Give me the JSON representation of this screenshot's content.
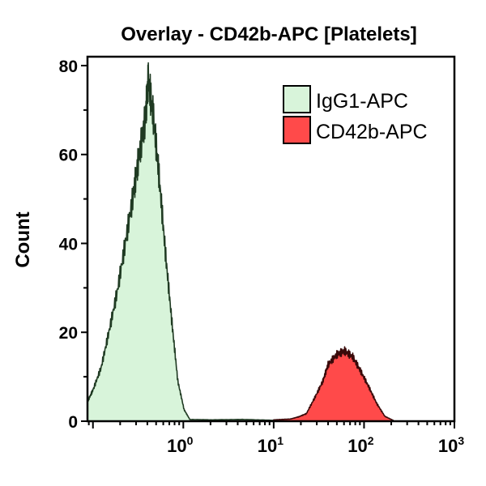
{
  "chart_data": {
    "type": "area",
    "title": "Overlay - CD42b-APC [Platelets]",
    "xlabel": "",
    "ylabel": "Count",
    "x_scale": "log",
    "xlim": [
      0.087,
      1000
    ],
    "ylim": [
      0,
      82
    ],
    "x_ticks": [
      {
        "value": 1,
        "base": "10",
        "exp": "0"
      },
      {
        "value": 10,
        "base": "10",
        "exp": "1"
      },
      {
        "value": 100,
        "base": "10",
        "exp": "2"
      },
      {
        "value": 1000,
        "base": "10",
        "exp": "3"
      }
    ],
    "y_ticks": [
      0,
      20,
      40,
      60,
      80
    ],
    "grid": false,
    "legend_placement": "top-right",
    "series": [
      {
        "name": "IgG1-APC",
        "color": "#d8f4da",
        "x": [
          0.087,
          0.1,
          0.123,
          0.15,
          0.185,
          0.228,
          0.28,
          0.32,
          0.38,
          0.41,
          0.47,
          0.54,
          0.64,
          0.75,
          0.87,
          1.02,
          1.18,
          2.0,
          4.5,
          10
        ],
        "values": [
          4.4,
          7,
          12,
          20,
          29,
          40,
          51,
          59,
          68,
          77,
          68,
          55,
          37,
          22,
          9,
          2.6,
          0.4,
          0.3,
          0.4,
          0.2
        ]
      },
      {
        "name": "CD42b-APC",
        "color": "#ff4a4a",
        "x": [
          10,
          15.4,
          19,
          23,
          28.5,
          35,
          40,
          50,
          61,
          75,
          91,
          113,
          138,
          170,
          210
        ],
        "values": [
          0.3,
          0.5,
          1.0,
          1.7,
          5.3,
          9,
          12.7,
          15,
          15.8,
          14.5,
          11.4,
          7.7,
          4,
          1.1,
          0.2
        ]
      }
    ]
  }
}
